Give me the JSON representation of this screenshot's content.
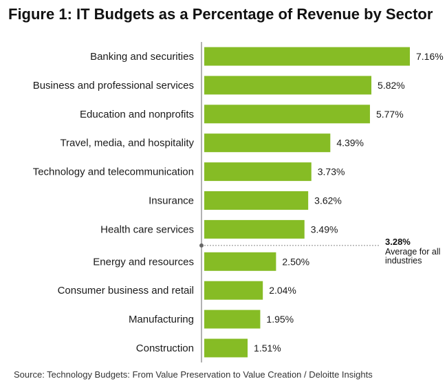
{
  "title": "Figure 1: IT Budgets as a Percentage of Revenue by Sector",
  "source": "Source: Technology Budgets: From Value Preservation to Value Creation / Deloitte Insights",
  "average": {
    "value_label": "3.28%",
    "label": "Average for all industries"
  },
  "colors": {
    "bar": "#86bc25",
    "axis": "#666666",
    "text": "#1a1a1a"
  },
  "chart_data": {
    "type": "bar",
    "orientation": "horizontal",
    "title": "Figure 1: IT Budgets as a Percentage of Revenue by Sector",
    "xlabel": "",
    "ylabel": "",
    "xlim": [
      0,
      7.16
    ],
    "grid": false,
    "legend": "none",
    "categories": [
      "Banking and securities",
      "Business and professional services",
      "Education and nonprofits",
      "Travel, media, and hospitality",
      "Technology and telecommunication",
      "Insurance",
      "Health care services",
      "Energy and resources",
      "Consumer business and retail",
      "Manufacturing",
      "Construction"
    ],
    "values": [
      7.16,
      5.82,
      5.77,
      4.39,
      3.73,
      3.62,
      3.49,
      2.5,
      2.04,
      1.95,
      1.51
    ],
    "value_labels": [
      "7.16%",
      "5.82%",
      "5.77%",
      "4.39%",
      "3.73%",
      "3.62%",
      "3.49%",
      "2.50%",
      "2.04%",
      "1.95%",
      "1.51%"
    ],
    "reference_line": {
      "value": 3.28,
      "label": "3.28%",
      "annotation": "Average for all industries"
    }
  }
}
